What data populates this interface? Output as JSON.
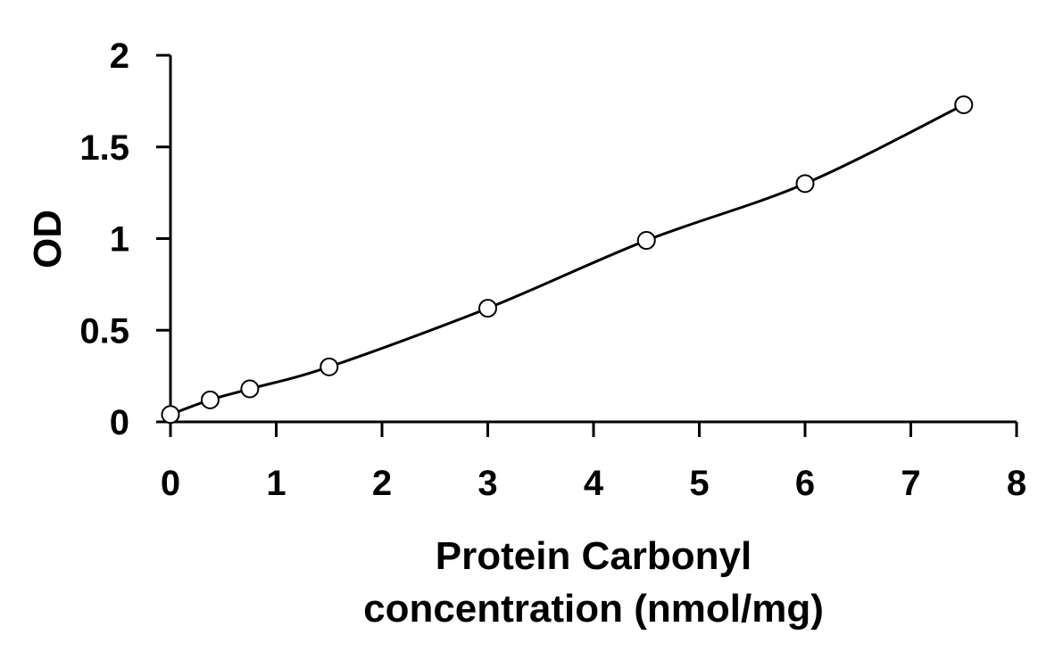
{
  "chart_data": {
    "type": "scatter",
    "title": "",
    "xlabel_lines": [
      "Protein Carbonyl",
      "concentration (nmol/mg)"
    ],
    "ylabel": "OD",
    "xlim": [
      0,
      8
    ],
    "ylim": [
      0,
      2
    ],
    "x_ticks": [
      0,
      1,
      2,
      3,
      4,
      5,
      6,
      7,
      8
    ],
    "y_ticks": [
      0,
      0.5,
      1,
      1.5,
      2
    ],
    "x_tick_labels": [
      "0",
      "1",
      "2",
      "3",
      "4",
      "5",
      "6",
      "7",
      "8"
    ],
    "y_tick_labels": [
      "0",
      "0.5",
      "1",
      "1.5",
      "2"
    ],
    "grid": false,
    "legend": "none",
    "marker": "open-circle",
    "trendline": "smooth fit through points",
    "series": [
      {
        "x": [
          0,
          0.375,
          0.75,
          1.5,
          3,
          4.5,
          6,
          7.5
        ],
        "y": [
          0.04,
          0.12,
          0.18,
          0.3,
          0.62,
          0.99,
          1.3,
          1.73
        ]
      }
    ],
    "colors": {
      "axis": "#000000",
      "curve": "#000000",
      "marker_stroke": "#000000",
      "marker_fill": "#ffffff",
      "background": "#ffffff"
    }
  }
}
